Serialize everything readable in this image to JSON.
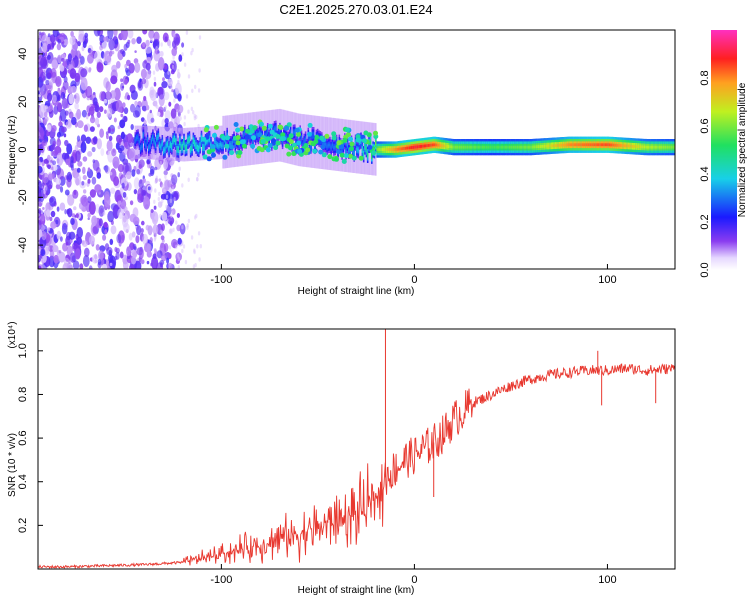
{
  "title": "C2E1.2025.270.03.01.E24",
  "chart_data": [
    {
      "type": "heatmap",
      "name": "spectrogram",
      "xlabel": "Height of straight line (km)",
      "ylabel": "Frequency (Hz)",
      "xlim": [
        -195,
        135
      ],
      "ylim": [
        -50,
        50
      ],
      "xticks": [
        -100,
        0,
        100
      ],
      "xtick_labels": [
        "-100",
        "0",
        "100"
      ],
      "yticks": [
        -40,
        -20,
        0,
        20,
        40
      ],
      "ytick_labels": [
        "-40",
        "-20",
        "0",
        "20",
        "40"
      ],
      "colorbar": {
        "label": "Normalized spectral amplitude",
        "range": [
          0,
          1
        ],
        "ticks": [
          0.0,
          0.2,
          0.4,
          0.6,
          0.8
        ],
        "tick_labels": [
          "0.0",
          "0.2",
          "0.4",
          "0.6",
          "0.8"
        ]
      },
      "ridge": {
        "description_x": [
          -140,
          -120,
          -100,
          -90,
          -80,
          -70,
          -60,
          -50,
          -40,
          -30,
          -20,
          -10,
          0,
          10,
          20,
          40,
          60,
          80,
          100,
          120,
          135
        ],
        "center_hz": [
          3,
          2,
          3,
          4,
          5,
          6,
          4,
          3,
          2,
          1,
          0,
          0,
          1,
          2,
          1,
          1,
          1,
          2,
          2,
          1,
          1
        ],
        "amplitude": [
          0.3,
          0.45,
          0.35,
          0.3,
          0.3,
          0.3,
          0.3,
          0.3,
          0.3,
          0.35,
          0.6,
          0.8,
          0.9,
          0.85,
          0.6,
          0.55,
          0.6,
          0.8,
          0.85,
          0.65,
          0.6
        ]
      }
    },
    {
      "type": "line",
      "name": "snr",
      "xlabel": "Height of straight line (km)",
      "ylabel": "SNR (10 * v/v)",
      "yscale_label": "(x10⁴)",
      "xlim": [
        -195,
        135
      ],
      "ylim": [
        0,
        1.1
      ],
      "xticks": [
        -100,
        0,
        100
      ],
      "xtick_labels": [
        "-100",
        "0",
        "100"
      ],
      "yticks": [
        0.2,
        0.4,
        0.6,
        0.8,
        1.0
      ],
      "ytick_labels": [
        "0.2",
        "0.4",
        "0.6",
        "0.8",
        "1.0"
      ],
      "color": "#e8382f",
      "series": [
        {
          "name": "SNR",
          "x": [
            -195,
            -180,
            -160,
            -140,
            -130,
            -120,
            -110,
            -100,
            -90,
            -80,
            -70,
            -60,
            -50,
            -40,
            -30,
            -25,
            -20,
            -15,
            -10,
            -5,
            0,
            5,
            10,
            15,
            20,
            25,
            30,
            40,
            50,
            60,
            70,
            80,
            90,
            100,
            110,
            120,
            135
          ],
          "y": [
            0.01,
            0.01,
            0.015,
            0.02,
            0.025,
            0.03,
            0.05,
            0.07,
            0.09,
            0.11,
            0.14,
            0.16,
            0.19,
            0.22,
            0.25,
            0.28,
            0.32,
            0.42,
            0.46,
            0.5,
            0.52,
            0.55,
            0.58,
            0.62,
            0.68,
            0.72,
            0.76,
            0.8,
            0.84,
            0.87,
            0.89,
            0.9,
            0.91,
            0.91,
            0.92,
            0.91,
            0.92
          ]
        }
      ],
      "spikes": [
        {
          "x": -15,
          "y": 1.1
        },
        {
          "x": 95,
          "y": 1.0
        },
        {
          "x": 97,
          "y": 0.75
        },
        {
          "x": 125,
          "y": 0.76
        },
        {
          "x": 10,
          "y": 0.33
        }
      ]
    }
  ]
}
